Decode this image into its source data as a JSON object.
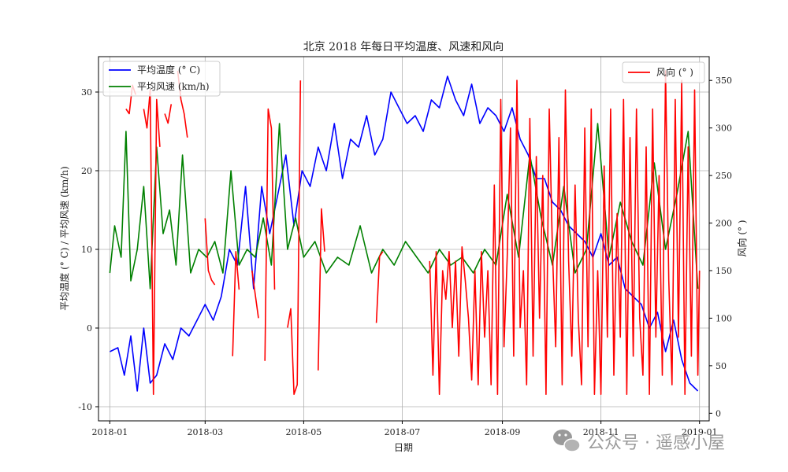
{
  "chart_data": {
    "type": "line",
    "title": "北京 2018 年每日平均温度、风速和风向",
    "xlabel": "日期",
    "ylabel_left": "平均温度 (° C) / 平均风速 (km/h)",
    "ylabel_right": "风向 (° )",
    "x_range": [
      "2017-12-25",
      "2019-01-07"
    ],
    "x_ticks": [
      "2018-01",
      "2018-03",
      "2018-05",
      "2018-07",
      "2018-09",
      "2018-11",
      "2019-01"
    ],
    "y_left_range": [
      -11.8,
      34.5
    ],
    "y_left_ticks": [
      -10,
      0,
      10,
      20,
      30
    ],
    "y_right_range": [
      -8,
      375
    ],
    "y_right_ticks": [
      0,
      50,
      100,
      150,
      200,
      250,
      300,
      350
    ],
    "grid": true,
    "legend_left": {
      "placement": "top-left",
      "entries": [
        "平均温度 (° C)",
        "平均风速 (km/h)"
      ]
    },
    "legend_right": {
      "placement": "top-right",
      "entries": [
        "风向 (° )"
      ]
    },
    "series": [
      {
        "name": "平均温度 (° C)",
        "axis": "left",
        "color": "#0000ff",
        "x": [
          "2018-01-01",
          "2018-01-06",
          "2018-01-10",
          "2018-01-14",
          "2018-01-18",
          "2018-01-22",
          "2018-01-26",
          "2018-01-30",
          "2018-02-04",
          "2018-02-09",
          "2018-02-14",
          "2018-02-19",
          "2018-02-24",
          "2018-03-01",
          "2018-03-06",
          "2018-03-11",
          "2018-03-16",
          "2018-03-21",
          "2018-03-26",
          "2018-03-31",
          "2018-04-05",
          "2018-04-10",
          "2018-04-15",
          "2018-04-20",
          "2018-04-25",
          "2018-04-30",
          "2018-05-05",
          "2018-05-10",
          "2018-05-15",
          "2018-05-20",
          "2018-05-25",
          "2018-05-30",
          "2018-06-04",
          "2018-06-09",
          "2018-06-14",
          "2018-06-19",
          "2018-06-24",
          "2018-06-29",
          "2018-07-04",
          "2018-07-09",
          "2018-07-14",
          "2018-07-19",
          "2018-07-24",
          "2018-07-29",
          "2018-08-03",
          "2018-08-08",
          "2018-08-13",
          "2018-08-18",
          "2018-08-23",
          "2018-08-28",
          "2018-09-02",
          "2018-09-07",
          "2018-09-12",
          "2018-09-17",
          "2018-09-22",
          "2018-09-27",
          "2018-10-02",
          "2018-10-07",
          "2018-10-12",
          "2018-10-17",
          "2018-10-22",
          "2018-10-27",
          "2018-11-01",
          "2018-11-06",
          "2018-11-11",
          "2018-11-16",
          "2018-11-21",
          "2018-11-26",
          "2018-12-01",
          "2018-12-06",
          "2018-12-11",
          "2018-12-16",
          "2018-12-21",
          "2018-12-26",
          "2018-12-31"
        ],
        "values": [
          -3,
          -2.5,
          -6,
          -1,
          -8,
          0,
          -7,
          -6,
          -2,
          -4,
          0,
          -1,
          1,
          3,
          1,
          4,
          10,
          8,
          18,
          5,
          18,
          12,
          17,
          22,
          13,
          20,
          18,
          23,
          20,
          26,
          19,
          24,
          23,
          27,
          22,
          24,
          30,
          28,
          26,
          27,
          25,
          29,
          28,
          32,
          29,
          27,
          31,
          26,
          28,
          27,
          25,
          28,
          24,
          22,
          19,
          19,
          16,
          15,
          13,
          12,
          11,
          9,
          12,
          8,
          9,
          5,
          4,
          3,
          0,
          2,
          -3,
          1,
          -4,
          -7,
          -8
        ]
      },
      {
        "name": "平均风速 (km/h)",
        "axis": "left",
        "color": "#008000",
        "x": [
          "2018-01-01",
          "2018-01-04",
          "2018-01-08",
          "2018-01-11",
          "2018-01-14",
          "2018-01-18",
          "2018-01-22",
          "2018-01-26",
          "2018-01-30",
          "2018-02-03",
          "2018-02-07",
          "2018-02-11",
          "2018-02-15",
          "2018-02-20",
          "2018-02-25",
          "2018-03-02",
          "2018-03-07",
          "2018-03-12",
          "2018-03-17",
          "2018-03-22",
          "2018-03-27",
          "2018-04-01",
          "2018-04-06",
          "2018-04-11",
          "2018-04-16",
          "2018-04-21",
          "2018-04-26",
          "2018-05-01",
          "2018-05-08",
          "2018-05-15",
          "2018-05-22",
          "2018-05-29",
          "2018-06-05",
          "2018-06-12",
          "2018-06-19",
          "2018-06-26",
          "2018-07-03",
          "2018-07-10",
          "2018-07-17",
          "2018-07-24",
          "2018-07-31",
          "2018-08-07",
          "2018-08-14",
          "2018-08-21",
          "2018-08-28",
          "2018-09-04",
          "2018-09-11",
          "2018-09-18",
          "2018-09-25",
          "2018-10-02",
          "2018-10-09",
          "2018-10-16",
          "2018-10-23",
          "2018-10-30",
          "2018-11-06",
          "2018-11-13",
          "2018-11-20",
          "2018-11-27",
          "2018-12-04",
          "2018-12-11",
          "2018-12-18",
          "2018-12-25",
          "2018-12-31"
        ],
        "values": [
          7,
          13,
          9,
          25,
          6,
          10,
          18,
          5,
          23,
          12,
          15,
          8,
          22,
          7,
          10,
          9,
          11,
          7,
          20,
          8,
          10,
          9,
          14,
          8,
          26,
          10,
          14,
          9,
          11,
          7,
          9,
          8,
          13,
          7,
          10,
          8,
          11,
          9,
          7,
          10,
          8,
          9,
          7,
          10,
          8,
          17,
          9,
          22,
          14,
          8,
          18,
          7,
          10,
          26,
          9,
          16,
          11,
          8,
          21,
          10,
          17,
          25,
          5
        ]
      },
      {
        "name": "风向 (° )",
        "axis": "right",
        "color": "#ff0000",
        "segments": [
          {
            "x": [
              "2018-01-11",
              "2018-01-13",
              "2018-01-15",
              "2018-01-17"
            ],
            "values": [
              320,
              315,
              345,
              335
            ]
          },
          {
            "x": [
              "2018-01-22",
              "2018-01-24",
              "2018-01-26",
              "2018-01-28",
              "2018-01-30",
              "2018-02-01"
            ],
            "values": [
              320,
              300,
              340,
              20,
              330,
              280
            ]
          },
          {
            "x": [
              "2018-02-04",
              "2018-02-06",
              "2018-02-08"
            ],
            "values": [
              315,
              305,
              325
            ]
          },
          {
            "x": [
              "2018-02-12",
              "2018-02-14",
              "2018-02-16",
              "2018-02-18"
            ],
            "values": [
              360,
              330,
              315,
              290
            ]
          },
          {
            "x": [
              "2018-03-01",
              "2018-03-03",
              "2018-03-05",
              "2018-03-07"
            ],
            "values": [
              205,
              150,
              140,
              135
            ]
          },
          {
            "x": [
              "2018-03-18",
              "2018-03-20",
              "2018-03-22"
            ],
            "values": [
              60,
              170,
              130
            ]
          },
          {
            "x": [
              "2018-03-30",
              "2018-04-01",
              "2018-04-03"
            ],
            "values": [
              150,
              125,
              100
            ]
          },
          {
            "x": [
              "2018-04-07",
              "2018-04-09",
              "2018-04-11",
              "2018-04-13"
            ],
            "values": [
              55,
              320,
              300,
              130
            ]
          },
          {
            "x": [
              "2018-04-21",
              "2018-04-23",
              "2018-04-25",
              "2018-04-27",
              "2018-04-29"
            ],
            "values": [
              90,
              110,
              20,
              30,
              350
            ]
          },
          {
            "x": [
              "2018-05-10",
              "2018-05-12",
              "2018-05-14"
            ],
            "values": [
              45,
              215,
              170
            ]
          },
          {
            "x": [
              "2018-06-15",
              "2018-06-17",
              "2018-06-19"
            ],
            "values": [
              95,
              165,
              170
            ]
          },
          {
            "x": [
              "2018-07-18",
              "2018-07-20",
              "2018-07-22",
              "2018-07-24",
              "2018-07-26",
              "2018-07-28",
              "2018-07-30",
              "2018-08-01",
              "2018-08-03",
              "2018-08-05",
              "2018-08-07",
              "2018-08-09",
              "2018-08-11",
              "2018-08-13",
              "2018-08-15",
              "2018-08-17",
              "2018-08-19",
              "2018-08-21",
              "2018-08-23",
              "2018-08-25",
              "2018-08-27",
              "2018-08-29",
              "2018-08-31",
              "2018-09-02",
              "2018-09-04",
              "2018-09-06",
              "2018-09-08",
              "2018-09-10",
              "2018-09-12",
              "2018-09-14",
              "2018-09-16",
              "2018-09-18",
              "2018-09-20",
              "2018-09-22",
              "2018-09-24",
              "2018-09-26",
              "2018-09-28",
              "2018-09-30",
              "2018-10-02",
              "2018-10-04",
              "2018-10-06",
              "2018-10-08",
              "2018-10-10",
              "2018-10-12",
              "2018-10-14",
              "2018-10-16",
              "2018-10-18",
              "2018-10-20",
              "2018-10-22",
              "2018-10-24",
              "2018-10-26",
              "2018-10-28",
              "2018-10-30",
              "2018-11-01",
              "2018-11-03",
              "2018-11-05",
              "2018-11-07",
              "2018-11-09",
              "2018-11-11",
              "2018-11-13",
              "2018-11-15",
              "2018-11-17",
              "2018-11-19",
              "2018-11-21",
              "2018-11-23",
              "2018-11-25",
              "2018-11-27",
              "2018-11-29",
              "2018-12-01",
              "2018-12-03",
              "2018-12-05",
              "2018-12-07",
              "2018-12-09",
              "2018-12-11",
              "2018-12-13",
              "2018-12-15",
              "2018-12-17",
              "2018-12-19",
              "2018-12-21",
              "2018-12-23",
              "2018-12-25",
              "2018-12-27",
              "2018-12-29",
              "2018-12-31",
              "2019-01-01"
            ],
            "values": [
              160,
              40,
              170,
              20,
              150,
              120,
              170,
              90,
              160,
              60,
              175,
              140,
              100,
              35,
              150,
              30,
              170,
              80,
              150,
              30,
              240,
              20,
              330,
              70,
              165,
              300,
              60,
              350,
              90,
              150,
              30,
              310,
              60,
              270,
              100,
              250,
              20,
              320,
              170,
              70,
              290,
              30,
              340,
              160,
              60,
              240,
              100,
              30,
              300,
              70,
              320,
              20,
              150,
              20,
              260,
              80,
              320,
              40,
              210,
              80,
              330,
              20,
              290,
              60,
              320,
              100,
              40,
              280,
              20,
              320,
              80,
              250,
              40,
              360,
              140,
              30,
              330,
              80,
              350,
              20,
              280,
              60,
              340,
              40,
              150
            ]
          }
        ]
      }
    ]
  },
  "watermark": {
    "text": "公众号 · 遥感小屋",
    "icon": "wechat-icon"
  }
}
